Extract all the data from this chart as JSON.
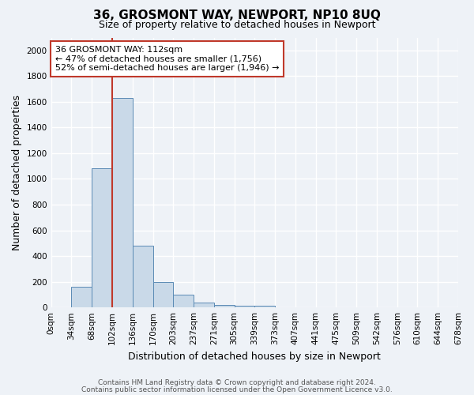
{
  "title": "36, GROSMONT WAY, NEWPORT, NP10 8UQ",
  "subtitle": "Size of property relative to detached houses in Newport",
  "xlabel": "Distribution of detached houses by size in Newport",
  "ylabel": "Number of detached properties",
  "bar_values": [
    0,
    160,
    1080,
    1630,
    480,
    200,
    100,
    40,
    20,
    12,
    12,
    0,
    0,
    0,
    0,
    0,
    0,
    0,
    0,
    0
  ],
  "bin_labels": [
    "0sqm",
    "34sqm",
    "68sqm",
    "102sqm",
    "136sqm",
    "170sqm",
    "203sqm",
    "237sqm",
    "271sqm",
    "305sqm",
    "339sqm",
    "373sqm",
    "407sqm",
    "441sqm",
    "475sqm",
    "509sqm",
    "542sqm",
    "576sqm",
    "610sqm",
    "644sqm",
    "678sqm"
  ],
  "bar_color": "#c9d9e8",
  "bar_edge_color": "#5a8ab5",
  "vline_x_index": 3,
  "vline_color": "#c0392b",
  "annotation_text": "36 GROSMONT WAY: 112sqm\n← 47% of detached houses are smaller (1,756)\n52% of semi-detached houses are larger (1,946) →",
  "annotation_box_color": "white",
  "annotation_box_edge_color": "#c0392b",
  "ylim": [
    0,
    2100
  ],
  "yticks": [
    0,
    200,
    400,
    600,
    800,
    1000,
    1200,
    1400,
    1600,
    1800,
    2000
  ],
  "footnote1": "Contains HM Land Registry data © Crown copyright and database right 2024.",
  "footnote2": "Contains public sector information licensed under the Open Government Licence v3.0.",
  "bg_color": "#eef2f7",
  "grid_color": "white",
  "title_fontsize": 11,
  "subtitle_fontsize": 9,
  "label_fontsize": 9,
  "tick_fontsize": 7.5,
  "annotation_fontsize": 8
}
